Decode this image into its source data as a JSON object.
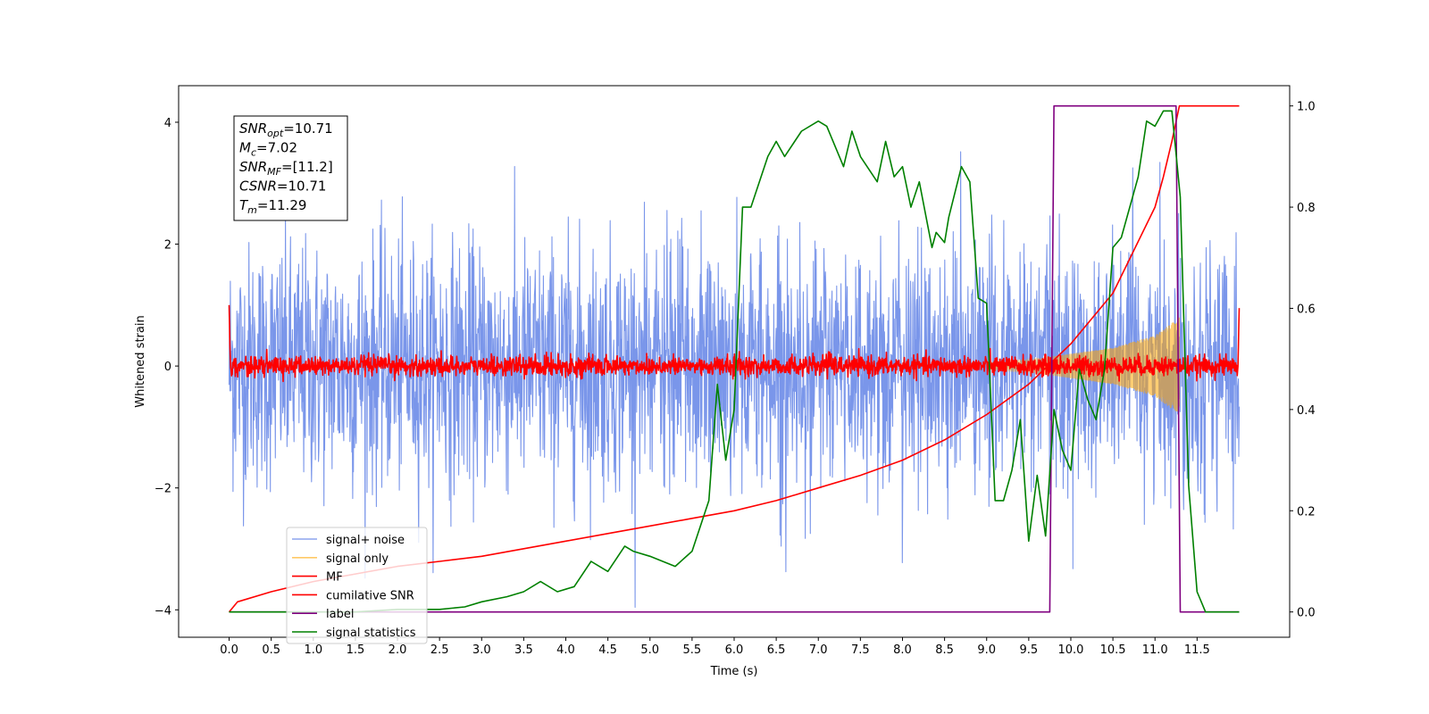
{
  "chart_data": {
    "type": "line",
    "xlabel": "Time (s)",
    "ylabel": "Whitened strain",
    "xlim": [
      -0.6,
      12.6
    ],
    "ylim": [
      -4.45,
      4.6
    ],
    "y2lim": [
      -0.05,
      1.04
    ],
    "x_ticks": [
      "0.0",
      "0.5",
      "1.0",
      "1.5",
      "2.0",
      "2.5",
      "3.0",
      "3.5",
      "4.0",
      "4.5",
      "5.0",
      "5.5",
      "6.0",
      "6.5",
      "7.0",
      "7.5",
      "8.0",
      "8.5",
      "9.0",
      "9.5",
      "10.0",
      "10.5",
      "11.0",
      "11.5"
    ],
    "y_ticks": [
      -4,
      -2,
      0,
      2,
      4
    ],
    "y2_ticks": [
      "0.0",
      "0.2",
      "0.4",
      "0.6",
      "0.8",
      "1.0"
    ],
    "legend": {
      "position": "lower-left",
      "entries": [
        {
          "label": "signal+ noise",
          "color": "#4169e1"
        },
        {
          "label": "signal only",
          "color": "#ffa500"
        },
        {
          "label": "MF",
          "color": "#ff0000"
        },
        {
          "label": "cumilative SNR",
          "color": "#ff0000"
        },
        {
          "label": "label",
          "color": "#800080"
        },
        {
          "label": "signal statistics",
          "color": "#008000"
        }
      ]
    },
    "info_box": {
      "lines": [
        {
          "sym": "SNR",
          "sub": "opt",
          "value": "=10.71"
        },
        {
          "sym": "M",
          "sub": "c",
          "value": "=7.02"
        },
        {
          "sym": "SNR",
          "sub": "MF",
          "value": "=[11.2]"
        },
        {
          "sym": "CSNR",
          "sub": "",
          "value": "=10.71"
        },
        {
          "sym": "T",
          "sub": "m",
          "value": "=11.29"
        }
      ]
    },
    "series": [
      {
        "name": "signal+ noise",
        "axis": "left",
        "kind": "noise-band",
        "x_range": [
          0.0,
          12.0
        ],
        "std": 1.0,
        "bound": 4.0
      },
      {
        "name": "signal only",
        "axis": "left",
        "kind": "chirp",
        "x_range": [
          9.0,
          11.29
        ],
        "envelope": [
          [
            9.0,
            0.05
          ],
          [
            9.5,
            0.1
          ],
          [
            10.0,
            0.2
          ],
          [
            10.5,
            0.3
          ],
          [
            11.0,
            0.5
          ],
          [
            11.29,
            0.8
          ]
        ]
      },
      {
        "name": "MF",
        "axis": "left",
        "kind": "noise-band",
        "x_range": [
          0.0,
          12.0
        ],
        "std": 0.08,
        "bound": 0.3,
        "edge_start": 1.0,
        "edge_end": 0.95
      },
      {
        "name": "cumilative SNR",
        "axis": "right",
        "kind": "line",
        "x": [
          0.0,
          0.1,
          0.5,
          1.0,
          1.5,
          2.0,
          2.5,
          3.0,
          3.5,
          4.0,
          4.5,
          5.0,
          5.5,
          6.0,
          6.5,
          7.0,
          7.5,
          8.0,
          8.5,
          9.0,
          9.5,
          10.0,
          10.5,
          11.0,
          11.1,
          11.2,
          11.29,
          11.5,
          12.0
        ],
        "y": [
          0.0,
          0.02,
          0.04,
          0.06,
          0.075,
          0.09,
          0.1,
          0.11,
          0.125,
          0.14,
          0.155,
          0.17,
          0.185,
          0.2,
          0.22,
          0.245,
          0.27,
          0.3,
          0.34,
          0.39,
          0.45,
          0.53,
          0.63,
          0.8,
          0.86,
          0.93,
          1.0,
          1.0,
          1.0
        ]
      },
      {
        "name": "label",
        "axis": "right",
        "kind": "line",
        "x": [
          0.0,
          9.75,
          9.8,
          11.25,
          11.3,
          12.0
        ],
        "y": [
          0.0,
          0.0,
          1.0,
          1.0,
          0.0,
          0.0
        ]
      },
      {
        "name": "signal statistics",
        "axis": "right",
        "kind": "line",
        "x": [
          0.0,
          0.5,
          1.0,
          1.5,
          2.0,
          2.5,
          2.8,
          3.0,
          3.3,
          3.5,
          3.7,
          3.9,
          4.1,
          4.3,
          4.5,
          4.7,
          4.8,
          5.0,
          5.3,
          5.5,
          5.7,
          5.8,
          5.9,
          6.0,
          6.1,
          6.2,
          6.4,
          6.5,
          6.6,
          6.8,
          7.0,
          7.1,
          7.3,
          7.4,
          7.5,
          7.7,
          7.8,
          7.9,
          8.0,
          8.1,
          8.2,
          8.35,
          8.4,
          8.5,
          8.55,
          8.7,
          8.8,
          8.9,
          9.0,
          9.1,
          9.2,
          9.3,
          9.4,
          9.5,
          9.6,
          9.7,
          9.8,
          9.9,
          10.0,
          10.1,
          10.2,
          10.3,
          10.4,
          10.5,
          10.6,
          10.8,
          10.9,
          11.0,
          11.1,
          11.2,
          11.3,
          11.4,
          11.5,
          11.6,
          12.0
        ],
        "y": [
          0.0,
          0.0,
          0.0,
          0.0,
          0.005,
          0.005,
          0.01,
          0.02,
          0.03,
          0.04,
          0.06,
          0.04,
          0.05,
          0.1,
          0.08,
          0.13,
          0.12,
          0.11,
          0.09,
          0.12,
          0.22,
          0.45,
          0.3,
          0.4,
          0.8,
          0.8,
          0.9,
          0.93,
          0.9,
          0.95,
          0.97,
          0.96,
          0.88,
          0.95,
          0.9,
          0.85,
          0.93,
          0.86,
          0.88,
          0.8,
          0.85,
          0.72,
          0.75,
          0.73,
          0.78,
          0.88,
          0.85,
          0.62,
          0.61,
          0.22,
          0.22,
          0.28,
          0.38,
          0.14,
          0.27,
          0.15,
          0.4,
          0.32,
          0.28,
          0.48,
          0.42,
          0.38,
          0.48,
          0.72,
          0.74,
          0.86,
          0.97,
          0.96,
          0.99,
          0.99,
          0.82,
          0.25,
          0.04,
          0.0,
          0.0
        ]
      }
    ]
  }
}
